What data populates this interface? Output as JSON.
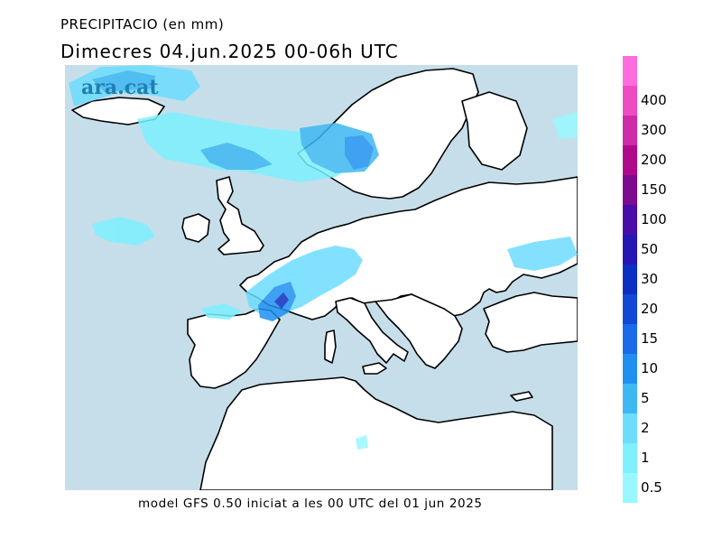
{
  "header": {
    "title": "PRECIPITACIO (en mm)",
    "subtitle": "Dimecres  04.jun.2025 00-06h UTC"
  },
  "logo": {
    "text": "ara.cat"
  },
  "footer": {
    "text": "model GFS 0.50 iniciat a les 00 UTC del 01 jun 2025"
  },
  "legend": {
    "items": [
      {
        "label": "0.5",
        "color": "#99f8ff"
      },
      {
        "label": "1",
        "color": "#7ef0ff"
      },
      {
        "label": "2",
        "color": "#6ddcff"
      },
      {
        "label": "5",
        "color": "#3eb8f2"
      },
      {
        "label": "10",
        "color": "#1f90f0"
      },
      {
        "label": "15",
        "color": "#1a6bea"
      },
      {
        "label": "20",
        "color": "#1248d6"
      },
      {
        "label": "30",
        "color": "#0b2fc2"
      },
      {
        "label": "50",
        "color": "#2616b4"
      },
      {
        "label": "100",
        "color": "#4a0ca8"
      },
      {
        "label": "150",
        "color": "#7e0a90"
      },
      {
        "label": "200",
        "color": "#b00a8c"
      },
      {
        "label": "300",
        "color": "#cf2aa8"
      },
      {
        "label": "400",
        "color": "#ef4cc4"
      },
      {
        "label": "",
        "color": "#ff6cdb"
      }
    ]
  },
  "map": {
    "sea_color": "#c6deea",
    "land_color": "#ffffff",
    "coast_color": "#000000"
  }
}
